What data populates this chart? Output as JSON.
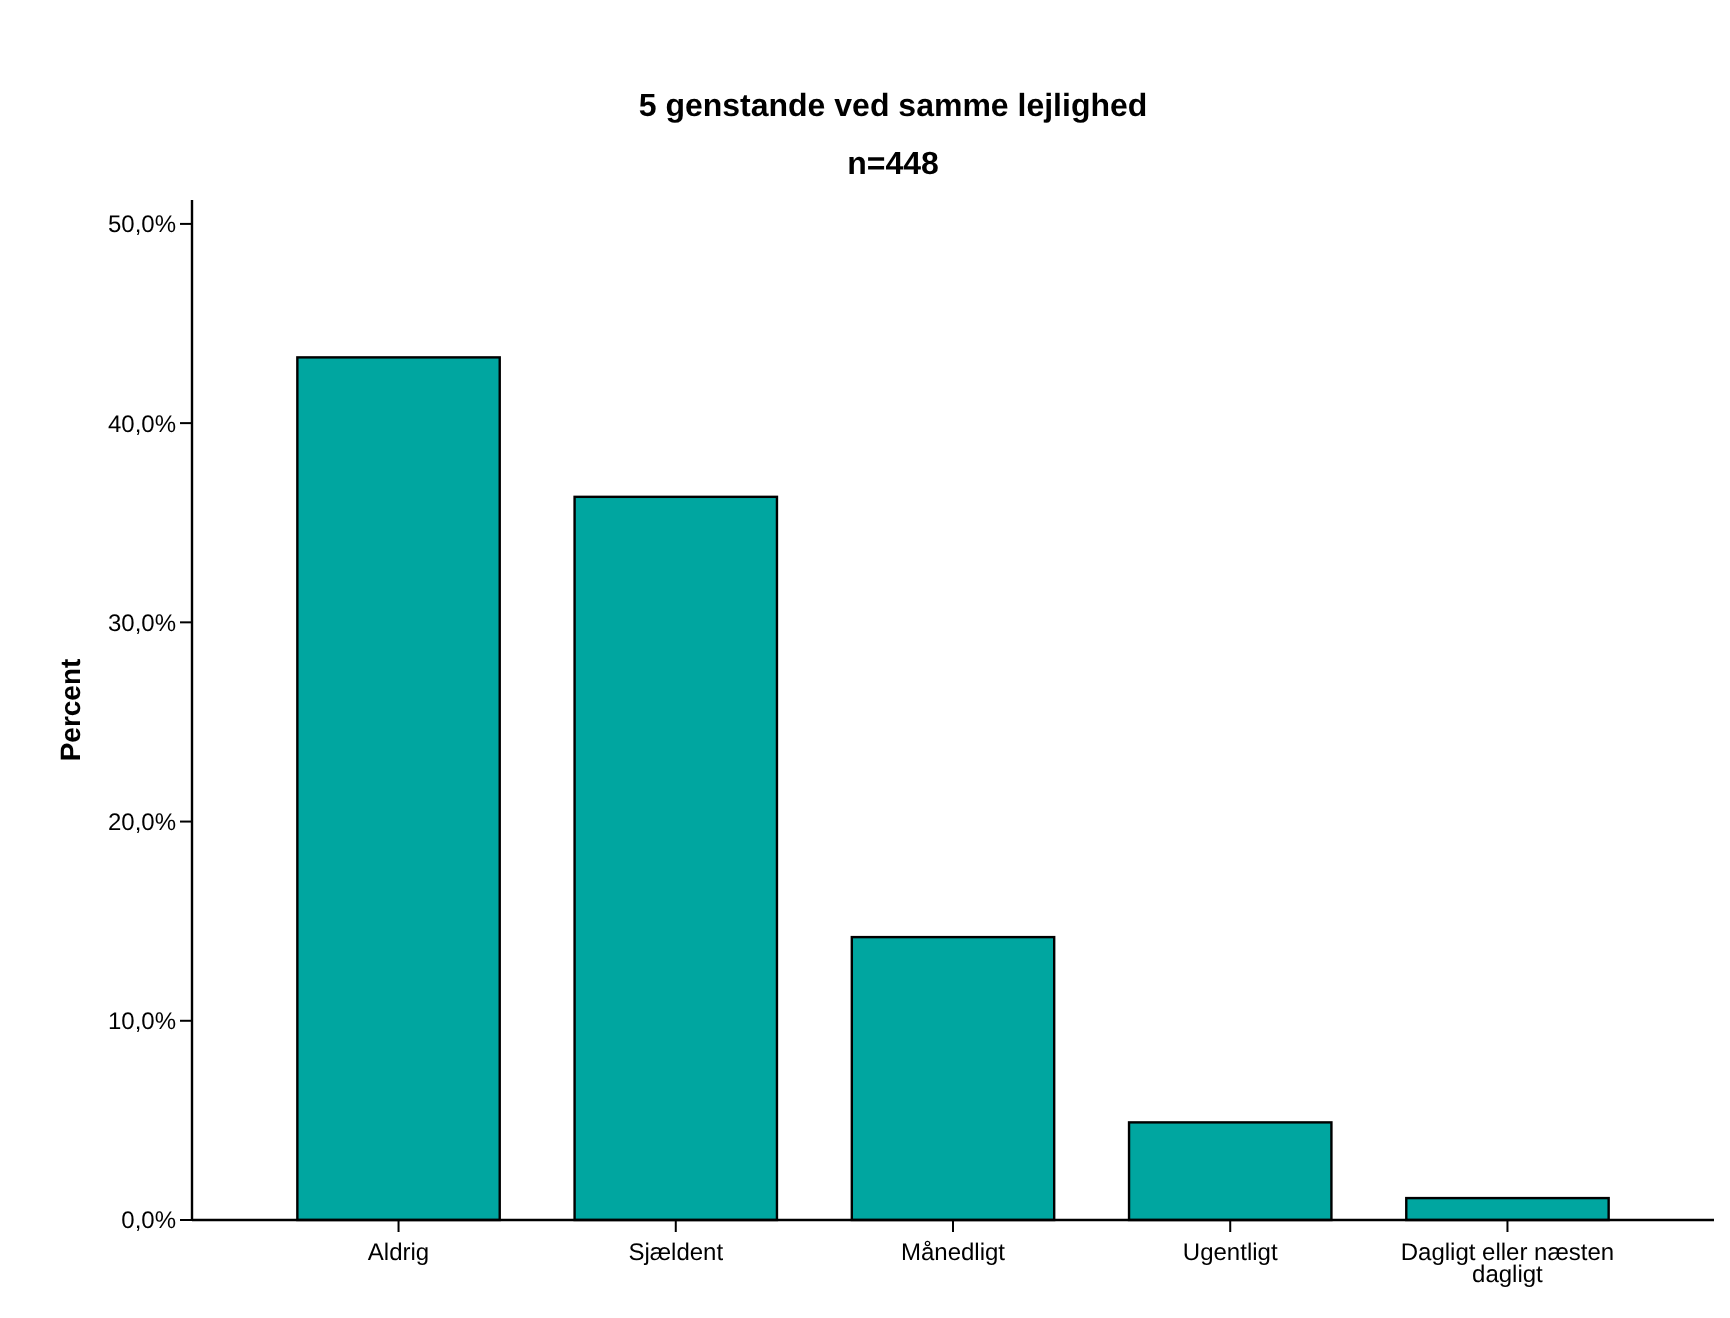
{
  "chart_data": {
    "type": "bar",
    "title": "5 genstande ved samme lejlighed",
    "subtitle": "n=448",
    "ylabel": "Percent",
    "categories": [
      "Aldrig",
      "Sjældent",
      "Månedligt",
      "Ugentligt",
      "Dagligt eller næsten dagligt"
    ],
    "values": [
      43.3,
      36.3,
      14.2,
      4.9,
      1.1
    ],
    "color": "#00a6a0",
    "ylim": [
      0,
      51.2
    ],
    "yticks": [
      {
        "value": 0,
        "label": "0,0%"
      },
      {
        "value": 10,
        "label": "10,0%"
      },
      {
        "value": 20,
        "label": "20,0%"
      },
      {
        "value": 30,
        "label": "30,0%"
      },
      {
        "value": 40,
        "label": "40,0%"
      },
      {
        "value": 50,
        "label": "50,0%"
      }
    ],
    "grid": false
  }
}
